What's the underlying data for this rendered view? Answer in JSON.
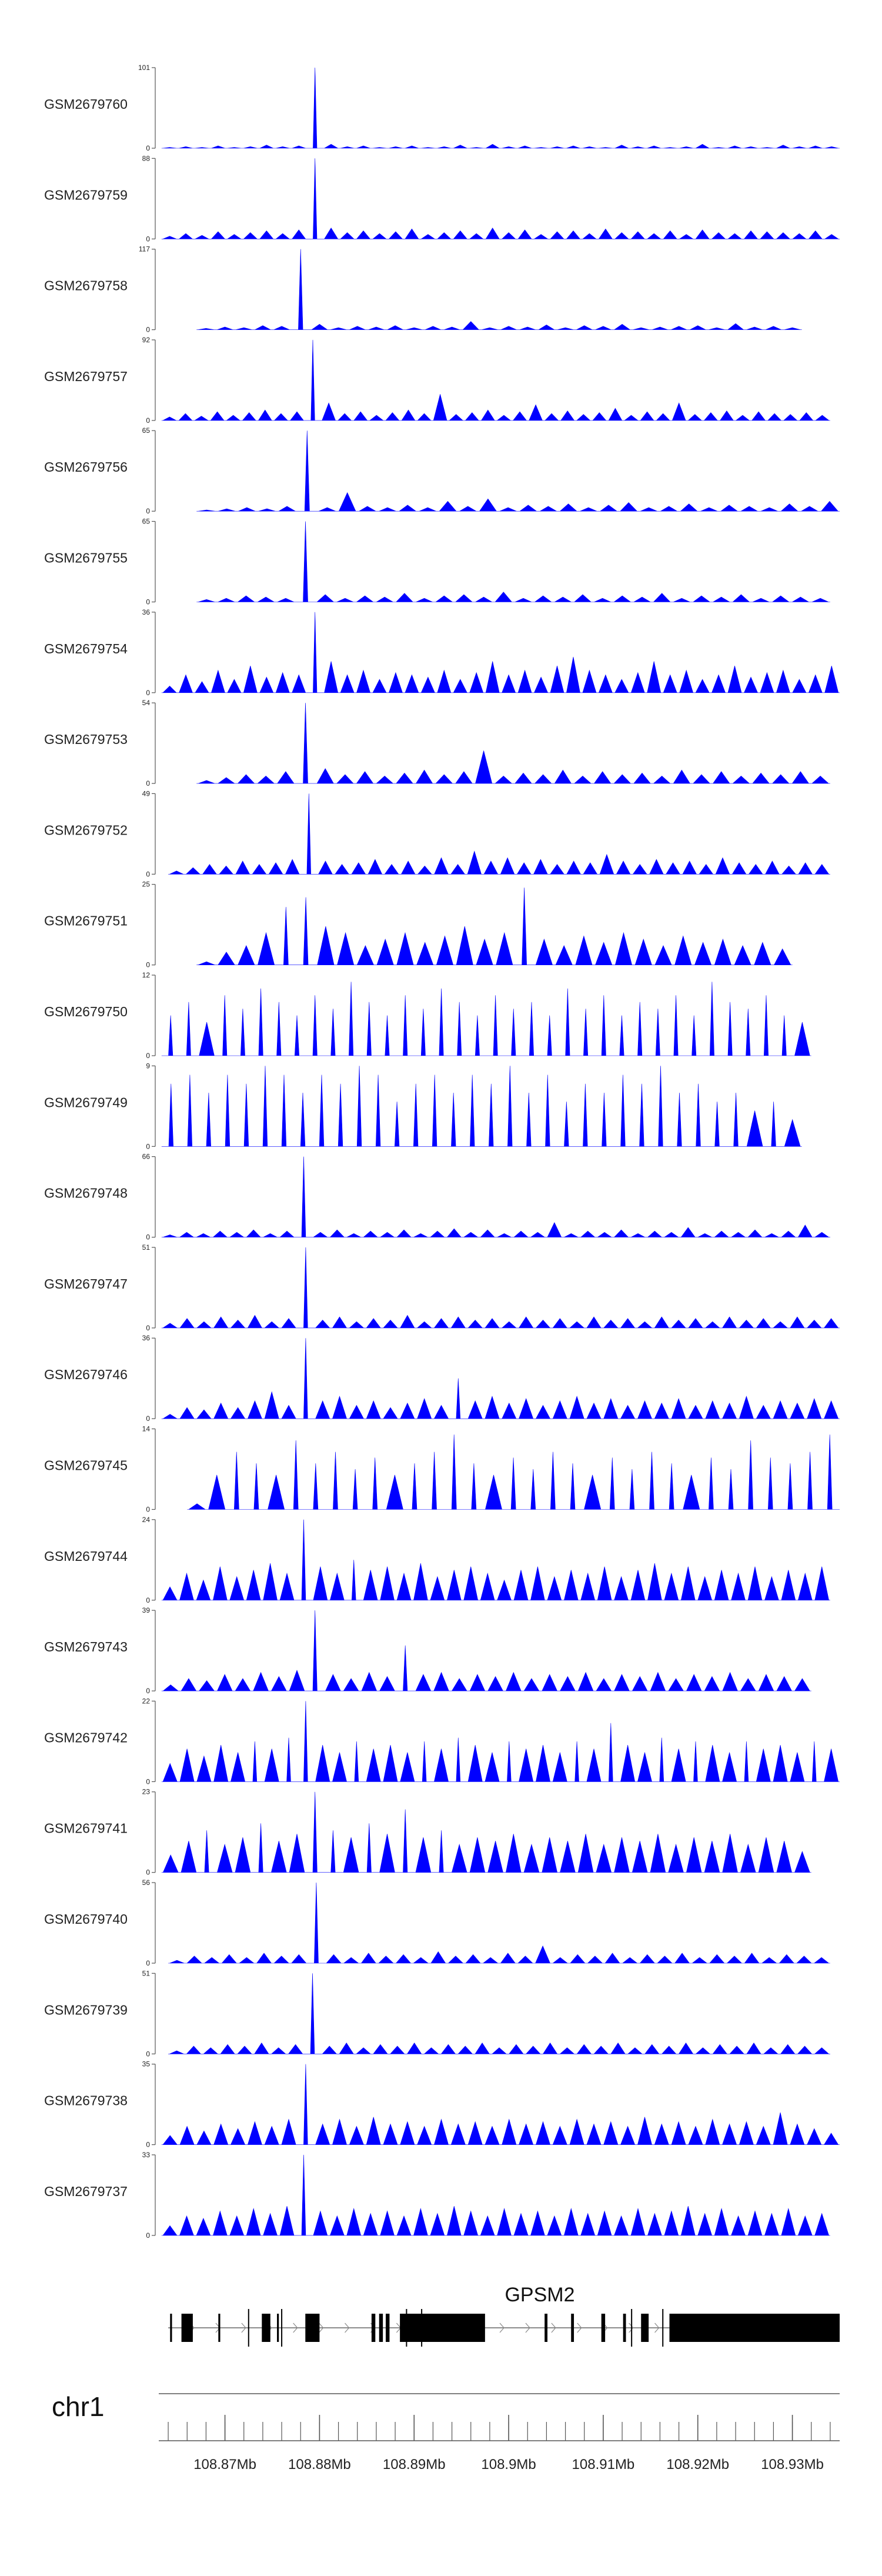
{
  "chart_data": {
    "type": "area",
    "chromosome": "chr1",
    "x_range_mb": [
      108.863,
      108.935
    ],
    "x_ticks_mb": [
      108.87,
      108.88,
      108.89,
      108.9,
      108.91,
      108.92,
      108.93
    ],
    "x_tick_labels": [
      "108.87Mb",
      "108.88Mb",
      "108.89Mb",
      "108.9Mb",
      "108.91Mb",
      "108.92Mb",
      "108.93Mb"
    ],
    "minor_tick_step_mb": 0.002,
    "fill_color": "#0000ff",
    "tracks": [
      {
        "label": "GSM2679760",
        "ymax_label": "101",
        "ymin_label": "0",
        "ymax": 101,
        "start": 108.8633,
        "end": 108.935,
        "profile": [
          1,
          2,
          1,
          3,
          1,
          2,
          4,
          2,
          3,
          101,
          5,
          2,
          3,
          1,
          2,
          3,
          1,
          2,
          4,
          1,
          5,
          2,
          3,
          1,
          2,
          3,
          2,
          1,
          4,
          2,
          3,
          1,
          2,
          5,
          1,
          3,
          2,
          1,
          4,
          2,
          3,
          2
        ]
      },
      {
        "label": "GSM2679759",
        "ymax_label": "88",
        "ymin_label": "0",
        "ymax": 88,
        "start": 108.8633,
        "end": 108.935,
        "profile": [
          3,
          6,
          4,
          8,
          5,
          7,
          9,
          6,
          10,
          88,
          12,
          7,
          9,
          6,
          8,
          11,
          5,
          7,
          9,
          6,
          12,
          7,
          10,
          5,
          8,
          9,
          6,
          11,
          7,
          8,
          6,
          9,
          5,
          10,
          7,
          6,
          9,
          8,
          7,
          6,
          9,
          5
        ]
      },
      {
        "label": "GSM2679758",
        "ymax_label": "117",
        "ymin_label": "0",
        "ymax": 117,
        "start": 108.867,
        "end": 108.931,
        "profile": [
          2,
          4,
          3,
          6,
          5,
          117,
          8,
          3,
          5,
          4,
          6,
          3,
          5,
          4,
          12,
          3,
          5,
          4,
          7,
          3,
          6,
          5,
          8,
          3,
          4,
          5,
          6,
          3,
          9,
          4,
          5,
          3
        ]
      },
      {
        "label": "GSM2679757",
        "ymax_label": "92",
        "ymin_label": "0",
        "ymax": 92,
        "start": 108.8633,
        "end": 108.934,
        "profile": [
          4,
          8,
          5,
          10,
          6,
          9,
          12,
          8,
          10,
          92,
          20,
          8,
          10,
          6,
          9,
          12,
          8,
          30,
          7,
          9,
          12,
          6,
          10,
          18,
          8,
          11,
          7,
          9,
          14,
          6,
          10,
          8,
          20,
          7,
          9,
          11,
          6,
          10,
          8,
          7,
          9,
          6
        ]
      },
      {
        "label": "GSM2679756",
        "ymax_label": "65",
        "ymin_label": "0",
        "ymax": 65,
        "start": 108.867,
        "end": 108.935,
        "profile": [
          1,
          2,
          3,
          2,
          4,
          65,
          3,
          15,
          4,
          3,
          5,
          3,
          8,
          4,
          10,
          3,
          5,
          4,
          6,
          3,
          5,
          7,
          3,
          4,
          6,
          3,
          5,
          4,
          3,
          6,
          4,
          8
        ]
      },
      {
        "label": "GSM2679755",
        "ymax_label": "65",
        "ymin_label": "0",
        "ymax": 65,
        "start": 108.867,
        "end": 108.934,
        "profile": [
          2,
          3,
          5,
          4,
          3,
          65,
          6,
          3,
          5,
          4,
          7,
          3,
          5,
          6,
          4,
          8,
          3,
          5,
          4,
          6,
          3,
          5,
          4,
          7,
          3,
          5,
          4,
          6,
          3,
          5,
          4,
          3
        ]
      },
      {
        "label": "GSM2679754",
        "ymax_label": "36",
        "ymin_label": "0",
        "ymax": 36,
        "start": 108.8633,
        "end": 108.935,
        "profile": [
          3,
          8,
          5,
          10,
          6,
          12,
          7,
          9,
          8,
          36,
          14,
          8,
          10,
          6,
          9,
          8,
          7,
          10,
          6,
          9,
          14,
          8,
          10,
          7,
          12,
          16,
          10,
          8,
          6,
          9,
          14,
          8,
          10,
          6,
          8,
          12,
          7,
          9,
          10,
          6,
          8,
          12
        ]
      },
      {
        "label": "GSM2679753",
        "ymax_label": "54",
        "ymin_label": "0",
        "ymax": 54,
        "start": 108.867,
        "end": 108.934,
        "profile": [
          2,
          4,
          6,
          5,
          8,
          54,
          10,
          6,
          8,
          5,
          7,
          9,
          6,
          8,
          22,
          5,
          7,
          6,
          9,
          5,
          8,
          6,
          7,
          5,
          9,
          6,
          8,
          5,
          7,
          6,
          8,
          5
        ]
      },
      {
        "label": "GSM2679752",
        "ymax_label": "49",
        "ymin_label": "0",
        "ymax": 49,
        "start": 108.864,
        "end": 108.934,
        "profile": [
          2,
          4,
          6,
          5,
          8,
          6,
          7,
          9,
          49,
          8,
          6,
          7,
          9,
          6,
          8,
          5,
          10,
          6,
          14,
          8,
          10,
          7,
          9,
          6,
          8,
          7,
          12,
          8,
          6,
          9,
          7,
          8,
          6,
          10,
          7,
          6,
          8,
          5,
          7,
          6
        ]
      },
      {
        "label": "GSM2679751",
        "ymax_label": "25",
        "ymin_label": "0",
        "ymax": 25,
        "start": 108.867,
        "end": 108.93,
        "profile": [
          1,
          4,
          6,
          10,
          18,
          21,
          12,
          10,
          6,
          8,
          10,
          7,
          9,
          12,
          8,
          10,
          24,
          8,
          6,
          9,
          7,
          10,
          8,
          6,
          9,
          7,
          8,
          6,
          7,
          5
        ]
      },
      {
        "label": "GSM2679750",
        "ymax_label": "12",
        "ymin_label": "0",
        "ymax": 12,
        "start": 108.8633,
        "end": 108.932,
        "profile": [
          6,
          8,
          5,
          9,
          7,
          10,
          8,
          6,
          9,
          7,
          11,
          8,
          6,
          9,
          7,
          10,
          8,
          6,
          9,
          7,
          8,
          6,
          10,
          7,
          9,
          6,
          8,
          7,
          9,
          6,
          11,
          8,
          7,
          9,
          6,
          5
        ]
      },
      {
        "label": "GSM2679749",
        "ymax_label": "9",
        "ymin_label": "0",
        "ymax": 9,
        "start": 108.8633,
        "end": 108.931,
        "profile": [
          7,
          8,
          6,
          8,
          7,
          9,
          8,
          6,
          8,
          7,
          9,
          8,
          5,
          7,
          8,
          6,
          8,
          7,
          9,
          6,
          8,
          5,
          7,
          6,
          8,
          7,
          9,
          6,
          7,
          5,
          6,
          4,
          5,
          3
        ]
      },
      {
        "label": "GSM2679748",
        "ymax_label": "66",
        "ymin_label": "0",
        "ymax": 66,
        "start": 108.8633,
        "end": 108.934,
        "profile": [
          2,
          4,
          3,
          5,
          4,
          6,
          3,
          5,
          66,
          4,
          6,
          3,
          5,
          4,
          6,
          3,
          5,
          7,
          4,
          6,
          3,
          5,
          4,
          12,
          3,
          5,
          4,
          6,
          3,
          5,
          4,
          8,
          3,
          5,
          4,
          6,
          3,
          5,
          10,
          4
        ]
      },
      {
        "label": "GSM2679747",
        "ymax_label": "51",
        "ymin_label": "0",
        "ymax": 51,
        "start": 108.8633,
        "end": 108.935,
        "profile": [
          3,
          6,
          4,
          7,
          5,
          8,
          4,
          6,
          51,
          5,
          7,
          4,
          6,
          5,
          8,
          4,
          6,
          7,
          5,
          6,
          4,
          7,
          5,
          6,
          4,
          7,
          5,
          6,
          4,
          7,
          5,
          6,
          4,
          7,
          5,
          6,
          4,
          7,
          5,
          6
        ]
      },
      {
        "label": "GSM2679746",
        "ymax_label": "36",
        "ymin_label": "0",
        "ymax": 36,
        "start": 108.8633,
        "end": 108.935,
        "profile": [
          2,
          5,
          4,
          7,
          5,
          8,
          12,
          6,
          36,
          8,
          10,
          6,
          8,
          5,
          7,
          9,
          6,
          18,
          8,
          10,
          7,
          9,
          6,
          8,
          10,
          7,
          9,
          6,
          8,
          7,
          9,
          6,
          8,
          7,
          10,
          6,
          8,
          7,
          9,
          8
        ]
      },
      {
        "label": "GSM2679745",
        "ymax_label": "14",
        "ymin_label": "0",
        "ymax": 14,
        "start": 108.866,
        "end": 108.935,
        "profile": [
          1,
          6,
          10,
          8,
          6,
          12,
          8,
          10,
          7,
          9,
          6,
          8,
          10,
          13,
          8,
          6,
          9,
          7,
          10,
          8,
          6,
          9,
          7,
          10,
          8,
          6,
          9,
          7,
          12,
          9,
          8,
          10,
          13
        ]
      },
      {
        "label": "GSM2679744",
        "ymax_label": "24",
        "ymin_label": "0",
        "ymax": 24,
        "start": 108.8633,
        "end": 108.934,
        "profile": [
          4,
          8,
          6,
          10,
          7,
          9,
          11,
          8,
          24,
          10,
          8,
          12,
          9,
          10,
          8,
          11,
          7,
          9,
          10,
          8,
          6,
          9,
          10,
          7,
          9,
          8,
          10,
          7,
          9,
          11,
          8,
          10,
          7,
          9,
          8,
          10,
          7,
          9,
          8,
          10
        ]
      },
      {
        "label": "GSM2679743",
        "ymax_label": "39",
        "ymin_label": "0",
        "ymax": 39,
        "start": 108.8633,
        "end": 108.932,
        "profile": [
          3,
          6,
          5,
          8,
          6,
          9,
          7,
          10,
          39,
          8,
          6,
          9,
          7,
          22,
          8,
          9,
          6,
          8,
          7,
          9,
          6,
          8,
          7,
          9,
          6,
          8,
          7,
          9,
          6,
          8,
          7,
          9,
          6,
          8,
          7,
          6
        ]
      },
      {
        "label": "GSM2679742",
        "ymax_label": "22",
        "ymin_label": "0",
        "ymax": 22,
        "start": 108.8633,
        "end": 108.935,
        "profile": [
          5,
          9,
          7,
          10,
          8,
          11,
          9,
          12,
          22,
          10,
          8,
          11,
          9,
          10,
          8,
          11,
          9,
          12,
          10,
          8,
          11,
          9,
          10,
          8,
          11,
          9,
          16,
          10,
          8,
          12,
          9,
          11,
          10,
          8,
          11,
          9,
          10,
          8,
          11,
          9
        ]
      },
      {
        "label": "GSM2679741",
        "ymax_label": "23",
        "ymin_label": "0",
        "ymax": 23,
        "start": 108.8633,
        "end": 108.932,
        "profile": [
          5,
          9,
          12,
          8,
          10,
          14,
          9,
          11,
          23,
          12,
          10,
          14,
          11,
          18,
          10,
          12,
          8,
          10,
          9,
          11,
          8,
          10,
          9,
          11,
          8,
          10,
          9,
          11,
          8,
          10,
          9,
          11,
          8,
          10,
          9,
          6
        ]
      },
      {
        "label": "GSM2679740",
        "ymax_label": "56",
        "ymin_label": "0",
        "ymax": 56,
        "start": 108.864,
        "end": 108.934,
        "profile": [
          2,
          5,
          4,
          6,
          4,
          7,
          5,
          6,
          56,
          6,
          4,
          7,
          5,
          6,
          4,
          8,
          5,
          6,
          4,
          7,
          5,
          12,
          4,
          6,
          5,
          7,
          4,
          6,
          5,
          7,
          4,
          6,
          5,
          7,
          4,
          6,
          5,
          4
        ]
      },
      {
        "label": "GSM2679739",
        "ymax_label": "51",
        "ymin_label": "0",
        "ymax": 51,
        "start": 108.864,
        "end": 108.934,
        "profile": [
          2,
          5,
          4,
          6,
          5,
          7,
          4,
          6,
          51,
          5,
          7,
          4,
          6,
          5,
          7,
          4,
          6,
          5,
          7,
          4,
          6,
          5,
          7,
          4,
          6,
          5,
          7,
          4,
          6,
          5,
          7,
          4,
          6,
          5,
          7,
          4,
          6,
          5,
          4
        ]
      },
      {
        "label": "GSM2679738",
        "ymax_label": "35",
        "ymin_label": "0",
        "ymax": 35,
        "start": 108.8633,
        "end": 108.935,
        "profile": [
          4,
          8,
          6,
          9,
          7,
          10,
          8,
          11,
          35,
          9,
          11,
          8,
          12,
          9,
          10,
          8,
          11,
          9,
          10,
          8,
          11,
          9,
          10,
          8,
          11,
          9,
          10,
          8,
          12,
          9,
          10,
          8,
          11,
          9,
          10,
          8,
          14,
          9,
          7,
          5
        ]
      },
      {
        "label": "GSM2679737",
        "ymax_label": "33",
        "ymin_label": "0",
        "ymax": 33,
        "start": 108.8633,
        "end": 108.934,
        "profile": [
          4,
          8,
          7,
          10,
          8,
          11,
          9,
          12,
          33,
          10,
          8,
          11,
          9,
          10,
          8,
          11,
          9,
          12,
          10,
          8,
          11,
          9,
          10,
          8,
          11,
          9,
          10,
          8,
          11,
          9,
          10,
          12,
          9,
          11,
          8,
          10,
          9,
          11,
          8,
          9
        ]
      }
    ],
    "gene": {
      "name": "GPSM2",
      "start": 108.864,
      "end": 108.935,
      "exons": [
        {
          "start": 108.8642,
          "end": 108.8644
        },
        {
          "start": 108.8654,
          "end": 108.8666
        },
        {
          "start": 108.8693,
          "end": 108.8695
        },
        {
          "start": 108.8739,
          "end": 108.8748
        },
        {
          "start": 108.8755,
          "end": 108.8757
        },
        {
          "start": 108.8785,
          "end": 108.88
        },
        {
          "start": 108.8855,
          "end": 108.8859
        },
        {
          "start": 108.8863,
          "end": 108.8867
        },
        {
          "start": 108.887,
          "end": 108.8874
        },
        {
          "start": 108.8885,
          "end": 108.8975
        },
        {
          "start": 108.9038,
          "end": 108.9041
        },
        {
          "start": 108.9066,
          "end": 108.9069
        },
        {
          "start": 108.9098,
          "end": 108.9102
        },
        {
          "start": 108.9121,
          "end": 108.9124
        },
        {
          "start": 108.914,
          "end": 108.9148
        },
        {
          "start": 108.917,
          "end": 108.935
        }
      ],
      "utr_markers": [
        108.8725,
        108.876,
        108.8892,
        108.8908,
        108.913,
        108.9163
      ]
    }
  }
}
